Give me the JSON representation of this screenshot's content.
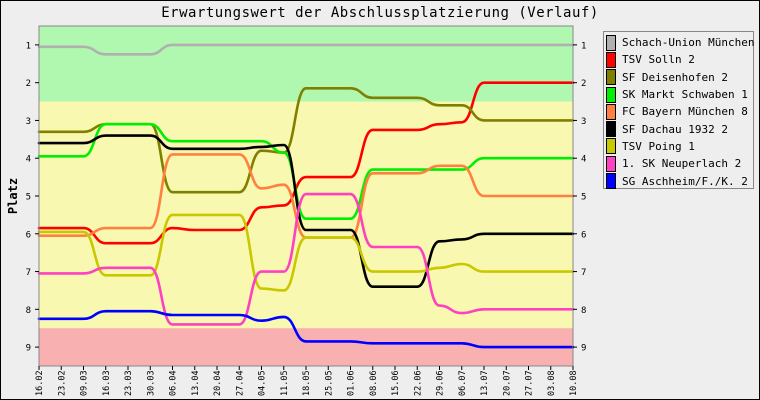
{
  "chart_data": {
    "type": "line",
    "title": "Erwartungswert der Abschlussplatzierung (Verlauf)",
    "ylabel": "Platz",
    "xlabel": "",
    "ylim": [
      0.5,
      9.5
    ],
    "y_inverted": true,
    "y_ticks": [
      1,
      2,
      3,
      4,
      5,
      6,
      7,
      8,
      9
    ],
    "zones": [
      {
        "from": 0.5,
        "to": 2.5,
        "color": "#b0f7b0"
      },
      {
        "from": 2.5,
        "to": 8.5,
        "color": "#f8f8b0"
      },
      {
        "from": 8.5,
        "to": 9.5,
        "color": "#f8b0b0"
      }
    ],
    "categories": [
      "16.02",
      "23.02",
      "09.03",
      "16.03",
      "23.03",
      "30.03",
      "06.04",
      "13.04",
      "20.04",
      "27.04",
      "04.05",
      "11.05",
      "18.05",
      "25.05",
      "01.06",
      "08.06",
      "15.06",
      "22.06",
      "29.06",
      "06.07",
      "13.07",
      "20.07",
      "27.07",
      "03.08",
      "10.08"
    ],
    "series": [
      {
        "name": "Schach-Union München 2",
        "color": "#b0b0b0",
        "values": [
          1.05,
          1.05,
          1.05,
          1.25,
          1.25,
          1.25,
          1.0,
          1.0,
          1.0,
          1.0,
          1.0,
          1.0,
          1.0,
          1.0,
          1.0,
          1.0,
          1.0,
          1.0,
          1.0,
          1.0,
          1.0,
          1.0,
          1.0,
          1.0,
          1.0
        ]
      },
      {
        "name": "TSV Solln 2",
        "color": "#ff0000",
        "values": [
          5.85,
          5.85,
          5.85,
          6.25,
          6.25,
          6.25,
          5.85,
          5.9,
          5.9,
          5.9,
          5.3,
          5.25,
          4.5,
          4.5,
          4.5,
          3.25,
          3.25,
          3.25,
          3.1,
          3.05,
          2.0,
          2.0,
          2.0,
          2.0,
          2.0
        ]
      },
      {
        "name": "SF Deisenhofen 2",
        "color": "#808000",
        "values": [
          3.3,
          3.3,
          3.3,
          3.1,
          3.1,
          3.1,
          4.9,
          4.9,
          4.9,
          4.9,
          3.8,
          3.85,
          2.15,
          2.15,
          2.15,
          2.4,
          2.4,
          2.4,
          2.6,
          2.6,
          3.0,
          3.0,
          3.0,
          3.0,
          3.0
        ]
      },
      {
        "name": "SK Markt Schwaben 1",
        "color": "#00ee00",
        "values": [
          3.95,
          3.95,
          3.95,
          3.1,
          3.1,
          3.1,
          3.55,
          3.55,
          3.55,
          3.55,
          3.55,
          3.85,
          5.6,
          5.6,
          5.6,
          4.3,
          4.3,
          4.3,
          4.3,
          4.3,
          4.0,
          4.0,
          4.0,
          4.0,
          4.0
        ]
      },
      {
        "name": "FC Bayern München 8",
        "color": "#ff8040",
        "values": [
          6.05,
          6.05,
          6.05,
          5.85,
          5.85,
          5.85,
          3.9,
          3.9,
          3.9,
          3.9,
          4.8,
          4.7,
          6.1,
          6.1,
          6.1,
          4.4,
          4.4,
          4.4,
          4.2,
          4.2,
          5.0,
          5.0,
          5.0,
          5.0,
          5.0
        ]
      },
      {
        "name": "SF Dachau 1932 2",
        "color": "#000000",
        "values": [
          3.6,
          3.6,
          3.6,
          3.4,
          3.4,
          3.4,
          3.75,
          3.75,
          3.75,
          3.75,
          3.7,
          3.65,
          5.9,
          5.9,
          5.9,
          7.4,
          7.4,
          7.4,
          6.2,
          6.15,
          6.0,
          6.0,
          6.0,
          6.0,
          6.0
        ]
      },
      {
        "name": "TSV Poing 1",
        "color": "#c8c800",
        "values": [
          5.95,
          5.95,
          5.95,
          7.1,
          7.1,
          7.1,
          5.5,
          5.5,
          5.5,
          5.5,
          7.45,
          7.5,
          6.1,
          6.1,
          6.1,
          7.0,
          7.0,
          7.0,
          6.9,
          6.8,
          7.0,
          7.0,
          7.0,
          7.0,
          7.0
        ]
      },
      {
        "name": "1. SK Neuperlach 2",
        "color": "#ff40c0",
        "values": [
          7.05,
          7.05,
          7.05,
          6.9,
          6.9,
          6.9,
          8.4,
          8.4,
          8.4,
          8.4,
          7.0,
          7.0,
          4.95,
          4.95,
          4.95,
          6.35,
          6.35,
          6.35,
          7.9,
          8.1,
          8.0,
          8.0,
          8.0,
          8.0,
          8.0
        ]
      },
      {
        "name": "SG Aschheim/F./K. 2",
        "color": "#0000ff",
        "values": [
          8.25,
          8.25,
          8.25,
          8.05,
          8.05,
          8.05,
          8.15,
          8.15,
          8.15,
          8.15,
          8.3,
          8.2,
          8.85,
          8.85,
          8.85,
          8.9,
          8.9,
          8.9,
          8.9,
          8.9,
          9.0,
          9.0,
          9.0,
          9.0,
          9.0
        ]
      }
    ]
  }
}
